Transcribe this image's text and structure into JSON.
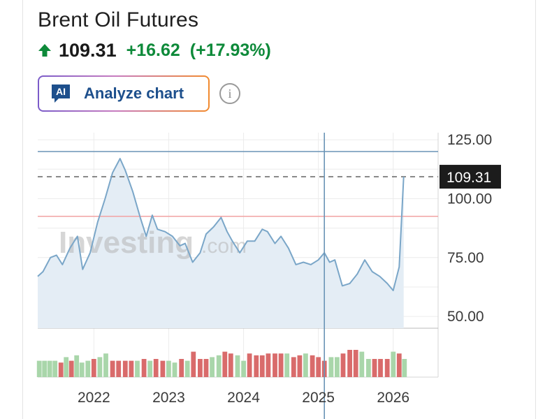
{
  "header": {
    "title": "Brent Oil Futures",
    "price": "109.31",
    "change": "+16.62",
    "change_pct": "(+17.93%)"
  },
  "buttons": {
    "analyze_icon": "AI",
    "analyze_label": "Analyze chart",
    "info_glyph": "i"
  },
  "colors": {
    "up": "#0e8a3a",
    "line": "#7aa6c8",
    "area": "#e4edf5",
    "vol_up": "#a9d6aa",
    "vol_down": "#d96b6b",
    "crosshair": "#6a94b6",
    "ref_line": "#f2a3a3"
  },
  "chart_data": {
    "type": "line",
    "title": "Brent Oil Futures",
    "xlabel": "",
    "ylabel": "",
    "ylim": [
      45,
      128
    ],
    "x_ticks": [
      "2022",
      "2023",
      "2024",
      "2025",
      "2026"
    ],
    "y_ticks": [
      "125.00",
      "100.00",
      "75.00",
      "50.00"
    ],
    "last_value": "109.31",
    "levels": {
      "upper_line": 120,
      "dashed_last": 109.31,
      "red_line": 92.5
    },
    "grid": true,
    "series": [
      {
        "x": [
          2021.25,
          2021.32,
          2021.42,
          2021.5,
          2021.58,
          2021.68,
          2021.78,
          2021.85,
          2021.95,
          2022.05,
          2022.15,
          2022.25,
          2022.35,
          2022.42,
          2022.52,
          2022.62,
          2022.7,
          2022.78,
          2022.85,
          2022.95,
          2023.05,
          2023.15,
          2023.22,
          2023.32,
          2023.42,
          2023.5,
          2023.6,
          2023.7,
          2023.78,
          2023.85,
          2023.95,
          2024.05,
          2024.15,
          2024.25,
          2024.32,
          2024.42,
          2024.5,
          2024.6,
          2024.7,
          2024.8,
          2024.9,
          2025.0,
          2025.08,
          2025.15,
          2025.22,
          2025.32,
          2025.42,
          2025.52,
          2025.62,
          2025.72,
          2025.82,
          2025.92,
          2026.0,
          2026.08,
          2026.14
        ],
        "values": [
          67,
          69,
          75,
          76,
          72,
          79,
          84,
          70,
          77,
          90,
          100,
          111,
          117,
          112,
          103,
          92,
          84,
          93,
          87,
          86,
          84,
          80,
          81,
          73,
          77,
          85,
          88,
          92,
          86,
          82,
          77,
          82,
          82,
          87,
          86,
          81,
          84,
          79,
          72,
          73,
          72,
          74,
          77,
          73,
          74,
          63,
          64,
          68,
          74,
          69,
          67,
          64,
          61,
          71,
          109.31
        ]
      }
    ],
    "volume": {
      "x": [
        2021.27,
        2021.34,
        2021.41,
        2021.48,
        2021.56,
        2021.63,
        2021.7,
        2021.77,
        2021.84,
        2021.92,
        2022.0,
        2022.08,
        2022.16,
        2022.25,
        2022.33,
        2022.42,
        2022.5,
        2022.58,
        2022.67,
        2022.75,
        2022.83,
        2022.92,
        2023.0,
        2023.08,
        2023.17,
        2023.25,
        2023.33,
        2023.42,
        2023.5,
        2023.58,
        2023.67,
        2023.75,
        2023.83,
        2023.92,
        2024.0,
        2024.08,
        2024.17,
        2024.25,
        2024.33,
        2024.42,
        2024.5,
        2024.58,
        2024.67,
        2024.75,
        2024.83,
        2024.92,
        2025.0,
        2025.08,
        2025.17,
        2025.25,
        2025.33,
        2025.42,
        2025.5,
        2025.58,
        2025.67,
        2025.75,
        2025.83,
        2025.92,
        2026.0,
        2026.08,
        2026.15
      ],
      "values": [
        0.45,
        0.45,
        0.45,
        0.45,
        0.4,
        0.55,
        0.45,
        0.6,
        0.4,
        0.45,
        0.5,
        0.55,
        0.65,
        0.45,
        0.45,
        0.45,
        0.45,
        0.45,
        0.5,
        0.45,
        0.5,
        0.45,
        0.45,
        0.4,
        0.5,
        0.45,
        0.7,
        0.5,
        0.5,
        0.55,
        0.6,
        0.7,
        0.65,
        0.6,
        0.45,
        0.65,
        0.6,
        0.6,
        0.65,
        0.65,
        0.65,
        0.65,
        0.55,
        0.6,
        0.65,
        0.6,
        0.55,
        0.45,
        0.55,
        0.55,
        0.65,
        0.75,
        0.75,
        0.7,
        0.5,
        0.5,
        0.5,
        0.5,
        0.7,
        0.65,
        0.5
      ],
      "up": [
        true,
        true,
        true,
        true,
        false,
        true,
        false,
        true,
        true,
        true,
        false,
        true,
        true,
        false,
        false,
        false,
        false,
        true,
        false,
        true,
        false,
        false,
        true,
        true,
        false,
        true,
        false,
        false,
        false,
        true,
        true,
        false,
        false,
        true,
        true,
        false,
        false,
        false,
        false,
        false,
        false,
        true,
        false,
        false,
        true,
        false,
        false,
        false,
        true,
        true,
        false,
        false,
        false,
        true,
        true,
        false,
        false,
        false,
        true,
        false,
        true
      ]
    }
  }
}
